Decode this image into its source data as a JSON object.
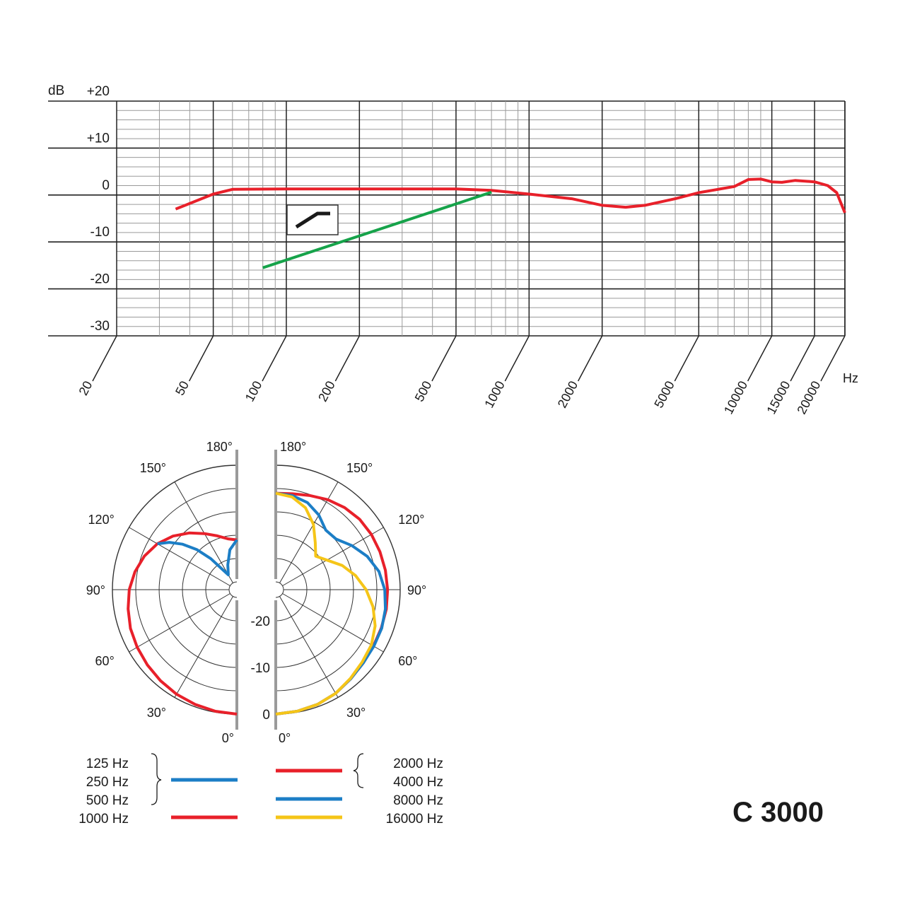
{
  "model_name": "C 3000",
  "chart_data": [
    {
      "type": "line",
      "x_scale": "log",
      "xlim": [
        20,
        20000
      ],
      "ylim": [
        -30,
        20
      ],
      "xlabel": "Hz",
      "ylabel": "dB",
      "x_tick_labels": [
        "20",
        "50",
        "100",
        "200",
        "500",
        "1000",
        "2000",
        "5000",
        "10000",
        "15000",
        "20000"
      ],
      "x_tick_values": [
        20,
        50,
        100,
        200,
        500,
        1000,
        2000,
        5000,
        10000,
        15000,
        20000
      ],
      "y_tick_labels": [
        "+20",
        "+10",
        "0",
        "-10",
        "-20",
        "-30"
      ],
      "y_tick_values": [
        20,
        10,
        0,
        -10,
        -20,
        -30
      ],
      "grid": true,
      "legend": "none",
      "inset_icon": "low-cut-filter-icon",
      "series": [
        {
          "color": "#e8202a",
          "points": [
            [
              35,
              -3
            ],
            [
              50,
              0.2
            ],
            [
              60,
              1.2
            ],
            [
              100,
              1.3
            ],
            [
              200,
              1.3
            ],
            [
              500,
              1.3
            ],
            [
              700,
              1.0
            ],
            [
              1000,
              0.2
            ],
            [
              1500,
              -0.8
            ],
            [
              2000,
              -2.2
            ],
            [
              2500,
              -2.6
            ],
            [
              3000,
              -2.2
            ],
            [
              4000,
              -0.8
            ],
            [
              5000,
              0.5
            ],
            [
              6000,
              1.2
            ],
            [
              7000,
              1.8
            ],
            [
              8000,
              3.3
            ],
            [
              9000,
              3.4
            ],
            [
              10000,
              2.8
            ],
            [
              11000,
              2.7
            ],
            [
              12500,
              3.1
            ],
            [
              15000,
              2.8
            ],
            [
              17000,
              2.0
            ],
            [
              18500,
              0.5
            ],
            [
              20000,
              -3.8
            ]
          ]
        },
        {
          "color": "#16a34a",
          "points": [
            [
              80,
              -15.5
            ],
            [
              200,
              -8.7
            ],
            [
              500,
              -1.9
            ],
            [
              700,
              0.6
            ]
          ]
        }
      ]
    },
    {
      "type": "polar",
      "angle_labels_left": [
        "180°",
        "150°",
        "120°",
        "90°",
        "60°",
        "30°",
        "0°"
      ],
      "angle_labels_right": [
        "180°",
        "150°",
        "120°",
        "90°",
        "60°",
        "30°",
        "0°"
      ],
      "radial_labels": [
        "-20",
        "-10",
        "0"
      ],
      "radial_values": [
        -20,
        -10,
        0
      ],
      "left_series": [
        {
          "color": "#e8202a",
          "angles": [
            0,
            10,
            20,
            30,
            40,
            50,
            60,
            70,
            80,
            90,
            100,
            110,
            120,
            130,
            140,
            150,
            160,
            170,
            180
          ],
          "db": [
            0,
            -0.2,
            -0.5,
            -0.8,
            -1.2,
            -1.6,
            -2.0,
            -2.4,
            -3.0,
            -3.6,
            -4.5,
            -5.6,
            -7.0,
            -8.8,
            -10.8,
            -12.8,
            -14.4,
            -15.6,
            -16.0
          ]
        },
        {
          "color": "#1c7ec6",
          "angles": [
            120,
            125,
            130,
            135,
            140,
            145,
            150,
            160,
            170,
            180
          ],
          "db": [
            -7.0,
            -9.0,
            -11.5,
            -14.5,
            -18.0,
            -21.5,
            -23.0,
            -21.0,
            -18.0,
            -16.0
          ]
        }
      ],
      "right_series": [
        {
          "color": "#e8202a",
          "angles": [
            0,
            10,
            20,
            30,
            40,
            50,
            60,
            70,
            80,
            90,
            100,
            110,
            120,
            130,
            140,
            150,
            160,
            170,
            180
          ],
          "db": [
            0,
            -0.2,
            -0.5,
            -1.0,
            -1.7,
            -2.2,
            -2.5,
            -2.6,
            -2.6,
            -2.7,
            -2.8,
            -2.9,
            -3.0,
            -3.2,
            -3.7,
            -4.4,
            -5.2,
            -5.8,
            -6.0
          ]
        },
        {
          "color": "#1c7ec6",
          "angles": [
            0,
            10,
            20,
            30,
            40,
            50,
            60,
            70,
            80,
            90,
            100,
            110,
            120,
            130,
            140,
            150,
            160,
            170,
            180
          ],
          "db": [
            0,
            -0.2,
            -0.5,
            -1.0,
            -1.7,
            -2.2,
            -2.4,
            -2.5,
            -2.8,
            -3.3,
            -4.2,
            -5.8,
            -7.8,
            -9.8,
            -10.0,
            -8.2,
            -6.8,
            -6.2,
            -6.0
          ]
        },
        {
          "color": "#f5c518",
          "angles": [
            0,
            10,
            20,
            30,
            40,
            50,
            60,
            70,
            80,
            90,
            100,
            110,
            120,
            130,
            140,
            150,
            160,
            170,
            180
          ],
          "db": [
            0,
            -0.2,
            -0.5,
            -1.0,
            -1.8,
            -2.5,
            -3.0,
            -4.0,
            -5.5,
            -7.3,
            -9.3,
            -11.5,
            -14.0,
            -15.5,
            -13.5,
            -10.5,
            -8.0,
            -6.5,
            -6.0
          ]
        }
      ]
    }
  ],
  "legend_left": {
    "items": [
      "125 Hz",
      "250 Hz",
      "500 Hz",
      "1000 Hz"
    ],
    "swatches": [
      {
        "color": "#1c7ec6",
        "label_indices": [
          0,
          1,
          2
        ]
      },
      {
        "color": "#e8202a",
        "label_indices": [
          3
        ]
      }
    ]
  },
  "legend_right": {
    "items": [
      "2000 Hz",
      "4000 Hz",
      "8000 Hz",
      "16000 Hz"
    ],
    "swatches": [
      {
        "color": "#e8202a",
        "label_indices": [
          0,
          1
        ]
      },
      {
        "color": "#1c7ec6",
        "label_indices": [
          2
        ]
      },
      {
        "color": "#f5c518",
        "label_indices": [
          3
        ]
      }
    ]
  }
}
